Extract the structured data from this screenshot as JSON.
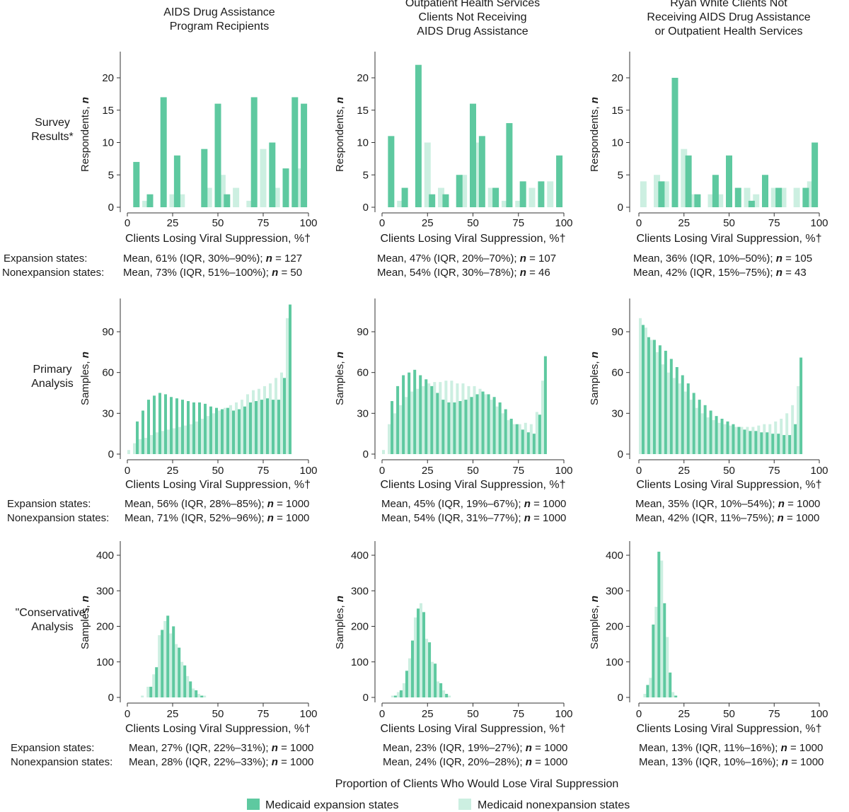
{
  "colors": {
    "expansion": "#5ec9a0",
    "nonexpansion": "#ccefe1"
  },
  "column_titles": [
    [
      "AIDS Drug Assistance",
      "Program Recipients"
    ],
    [
      "Outpatient Health Services",
      "Clients Not Receiving",
      "AIDS Drug Assistance"
    ],
    [
      "Ryan White Clients Not",
      "Receiving AIDS Drug Assistance",
      "or Outpatient Health Services"
    ]
  ],
  "row_labels": [
    [
      "Survey",
      "Results*"
    ],
    [
      "Primary",
      "Analysis"
    ],
    [
      "\"Conservative\"",
      "Analysis"
    ]
  ],
  "bottom_xlabel": "Proportion of Clients Who Would Lose Viral Suppression",
  "legend": {
    "expansion": "Medicaid expansion states",
    "nonexpansion": "Medicaid nonexpansion states"
  },
  "chart_data": [
    {
      "type": "bar",
      "ylabel": "Respondents, n",
      "xlabel": "Clients Losing Viral Suppression, %†",
      "ylim": [
        0,
        24
      ],
      "yticks": [
        0,
        5,
        10,
        15,
        20
      ],
      "xticks": [
        0,
        25,
        50,
        75,
        100
      ],
      "expansion": {
        "x": [
          5,
          12.5,
          20,
          27.5,
          42.5,
          50,
          55,
          70,
          80,
          87.5,
          92.5,
          97.5
        ],
        "values": [
          7,
          2,
          17,
          8,
          9,
          16,
          2,
          17,
          10,
          6,
          17,
          16
        ]
      },
      "nonexpansion": {
        "x": [
          10,
          25,
          30,
          45,
          52.5,
          60,
          67.5,
          75,
          82.5,
          95
        ],
        "values": [
          1,
          2,
          2,
          3,
          5,
          3,
          1,
          9,
          3,
          6
        ]
      },
      "stats_labels": [
        "Expansion states:",
        "Nonexpansion states:"
      ],
      "stats": [
        {
          "prefix": "Mean, 61% (IQR, 30%–90%); ",
          "n": "n",
          "suffix": " = 127"
        },
        {
          "prefix": "Mean, 73% (IQR, 51%–100%); ",
          "n": "n",
          "suffix": " = 50"
        }
      ]
    },
    {
      "type": "bar",
      "ylabel": "Respondents, n",
      "xlabel": "Clients Losing Viral Suppression, %†",
      "ylim": [
        0,
        24
      ],
      "yticks": [
        0,
        5,
        10,
        15,
        20
      ],
      "xticks": [
        0,
        25,
        50,
        75,
        100
      ],
      "expansion": {
        "x": [
          5,
          12.5,
          20,
          27.5,
          35,
          42.5,
          50,
          55,
          62.5,
          70,
          77.5,
          87.5,
          97.5
        ],
        "values": [
          11,
          3,
          22,
          2,
          2,
          5,
          16,
          11,
          3,
          13,
          4,
          4,
          8
        ]
      },
      "nonexpansion": {
        "x": [
          10,
          25,
          32.5,
          45,
          52.5,
          60,
          67.5,
          75,
          82.5,
          92.5
        ],
        "values": [
          1,
          10,
          3,
          5,
          10,
          3,
          1,
          1,
          3,
          4
        ]
      },
      "stats_labels": [
        "",
        ""
      ],
      "stats": [
        {
          "prefix": "Mean, 47% (IQR, 20%–70%); ",
          "n": "n",
          "suffix": " = 107"
        },
        {
          "prefix": "Mean, 54% (IQR, 30%–78%); ",
          "n": "n",
          "suffix": " = 46"
        }
      ]
    },
    {
      "type": "bar",
      "ylabel": "Respondents, n",
      "xlabel": "Clients Losing Viral Suppression, %†",
      "ylim": [
        0,
        23
      ],
      "yticks": [
        0,
        5,
        10,
        15,
        20
      ],
      "xticks": [
        0,
        25,
        50,
        75,
        100
      ],
      "expansion": {
        "x": [
          12.5,
          20,
          27.5,
          32.5,
          42.5,
          50,
          55,
          62.5,
          70,
          77.5,
          92.5,
          97.5
        ],
        "values": [
          4,
          20,
          8,
          2,
          5,
          8,
          3,
          1,
          5,
          3,
          3,
          10
        ]
      },
      "nonexpansion": {
        "x": [
          2.5,
          10,
          15,
          25,
          30,
          40,
          45,
          60,
          65,
          75,
          80,
          87.5,
          95
        ],
        "values": [
          4,
          5,
          4,
          9,
          2,
          2,
          2,
          3,
          2,
          3,
          3,
          3,
          4
        ]
      },
      "stats_labels": [
        "",
        ""
      ],
      "stats": [
        {
          "prefix": "Mean, 36% (IQR, 10%–50%); ",
          "n": "n",
          "suffix": " = 105"
        },
        {
          "prefix": "Mean, 42% (IQR, 15%–75%); ",
          "n": "n",
          "suffix": " = 43"
        }
      ]
    },
    {
      "type": "bar",
      "ylabel": "Samples, n",
      "xlabel": "Clients Losing Viral Suppression, %†",
      "ylim": [
        0,
        112
      ],
      "yticks": [
        0,
        30,
        60,
        90
      ],
      "xticks": [
        0,
        25,
        50,
        75,
        100
      ],
      "bin_start": 0,
      "bin_width": 3.125,
      "expansion": [
        0,
        24,
        32,
        40,
        43,
        45,
        44,
        42,
        41,
        40,
        39,
        38,
        38,
        37,
        35,
        34,
        33,
        34,
        32,
        33,
        35,
        38,
        39,
        40,
        41,
        40,
        40,
        56,
        110
      ],
      "nonexpansion": [
        3,
        8,
        11,
        12,
        14,
        16,
        17,
        18,
        19,
        20,
        21,
        22,
        24,
        26,
        28,
        30,
        32,
        34,
        36,
        38,
        40,
        44,
        47,
        48,
        50,
        52,
        56,
        60,
        100
      ],
      "stats_labels": [
        "Expansion states:",
        "Nonexpansion states:"
      ],
      "stats": [
        {
          "prefix": "Mean, 56% (IQR, 28%–85%); ",
          "n": "n",
          "suffix": " = 1000"
        },
        {
          "prefix": "Mean, 71% (IQR, 52%–96%); ",
          "n": "n",
          "suffix": " = 1000"
        }
      ]
    },
    {
      "type": "bar",
      "ylabel": "Samples, n",
      "xlabel": "Clients Losing Viral Suppression, %†",
      "ylim": [
        0,
        112
      ],
      "yticks": [
        0,
        30,
        60,
        90
      ],
      "xticks": [
        0,
        25,
        50,
        75,
        100
      ],
      "bin_start": 0,
      "bin_width": 3.125,
      "expansion": [
        0,
        39,
        50,
        58,
        60,
        62,
        58,
        55,
        50,
        45,
        40,
        38,
        38,
        39,
        40,
        42,
        44,
        46,
        44,
        42,
        38,
        33,
        26,
        22,
        18,
        16,
        15,
        29,
        72
      ],
      "nonexpansion": [
        3,
        22,
        30,
        36,
        42,
        46,
        48,
        50,
        52,
        53,
        53,
        54,
        54,
        52,
        52,
        50,
        50,
        48,
        44,
        40,
        35,
        30,
        25,
        22,
        22,
        23,
        22,
        31,
        54
      ],
      "stats_labels": [
        "",
        ""
      ],
      "stats": [
        {
          "prefix": "Mean, 45% (IQR, 19%–67%); ",
          "n": "n",
          "suffix": " = 1000"
        },
        {
          "prefix": "Mean, 54% (IQR, 31%–77%); ",
          "n": "n",
          "suffix": " = 1000"
        }
      ]
    },
    {
      "type": "bar",
      "ylabel": "Samples, n",
      "xlabel": "Clients Losing Viral Suppression, %†",
      "ylim": [
        0,
        112
      ],
      "yticks": [
        0,
        30,
        60,
        90
      ],
      "xticks": [
        0,
        25,
        50,
        75,
        100
      ],
      "bin_start": 0,
      "bin_width": 3.125,
      "expansion": [
        95,
        86,
        84,
        80,
        76,
        70,
        64,
        58,
        52,
        45,
        40,
        36,
        32,
        28,
        26,
        24,
        22,
        20,
        18,
        17,
        17,
        16,
        16,
        15,
        15,
        14,
        14,
        22,
        71
      ],
      "nonexpansion": [
        100,
        93,
        84,
        75,
        66,
        60,
        56,
        52,
        46,
        40,
        34,
        30,
        27,
        25,
        23,
        22,
        21,
        20,
        20,
        20,
        20,
        21,
        22,
        22,
        24,
        26,
        30,
        36,
        50
      ],
      "stats_labels": [
        "",
        ""
      ],
      "stats": [
        {
          "prefix": "Mean, 35% (IQR, 10%–54%); ",
          "n": "n",
          "suffix": " = 1000"
        },
        {
          "prefix": "Mean, 42% (IQR, 11%–75%); ",
          "n": "n",
          "suffix": " = 1000"
        }
      ]
    },
    {
      "type": "bar",
      "ylabel": "Samples, n",
      "xlabel": "Clients Losing Viral Suppression, %†",
      "ylim": [
        0,
        440
      ],
      "yticks": [
        0,
        100,
        200,
        300,
        400
      ],
      "xticks": [
        0,
        25,
        50,
        75,
        100
      ],
      "bin_start": 7.5,
      "bin_width": 3.125,
      "expansion": [
        0,
        30,
        85,
        190,
        230,
        200,
        140,
        90,
        45,
        20,
        5
      ],
      "nonexpansion": [
        5,
        30,
        65,
        175,
        215,
        180,
        150,
        100,
        60,
        25,
        10,
        5
      ],
      "stats_labels": [
        "Expansion states:",
        "Nonexpansion states:"
      ],
      "stats": [
        {
          "prefix": "Mean, 27% (IQR, 22%–31%); ",
          "n": "n",
          "suffix": " = 1000"
        },
        {
          "prefix": "Mean, 28% (IQR, 22%–33%); ",
          "n": "n",
          "suffix": " = 1000"
        }
      ]
    },
    {
      "type": "bar",
      "ylabel": "Samples, n",
      "xlabel": "Clients Losing Viral Suppression, %†",
      "ylim": [
        0,
        440
      ],
      "yticks": [
        0,
        100,
        200,
        300,
        400
      ],
      "xticks": [
        0,
        25,
        50,
        75,
        100
      ],
      "bin_start": 5,
      "bin_width": 3.125,
      "expansion": [
        5,
        20,
        75,
        160,
        250,
        240,
        155,
        95,
        40,
        10
      ],
      "nonexpansion": [
        5,
        15,
        40,
        110,
        225,
        265,
        165,
        100,
        45,
        20,
        5
      ],
      "stats_labels": [
        "",
        ""
      ],
      "stats": [
        {
          "prefix": "Mean, 23% (IQR, 19%–27%); ",
          "n": "n",
          "suffix": " = 1000"
        },
        {
          "prefix": "Mean, 24% (IQR, 20%–28%); ",
          "n": "n",
          "suffix": " = 1000"
        }
      ]
    },
    {
      "type": "bar",
      "ylabel": "Samples, n",
      "xlabel": "Clients Losing Viral Suppression, %†",
      "ylim": [
        0,
        440
      ],
      "yticks": [
        0,
        100,
        200,
        300,
        400
      ],
      "xticks": [
        0,
        25,
        50,
        75,
        100
      ],
      "bin_start": 2.5,
      "bin_width": 3.125,
      "expansion": [
        35,
        205,
        410,
        265,
        70,
        5
      ],
      "nonexpansion": [
        10,
        55,
        255,
        385,
        170,
        15
      ],
      "stats_labels": [
        "",
        ""
      ],
      "stats": [
        {
          "prefix": "Mean, 13% (IQR, 11%–16%); ",
          "n": "n",
          "suffix": " = 1000"
        },
        {
          "prefix": "Mean, 13% (IQR, 10%–16%); ",
          "n": "n",
          "suffix": " = 1000"
        }
      ]
    }
  ]
}
